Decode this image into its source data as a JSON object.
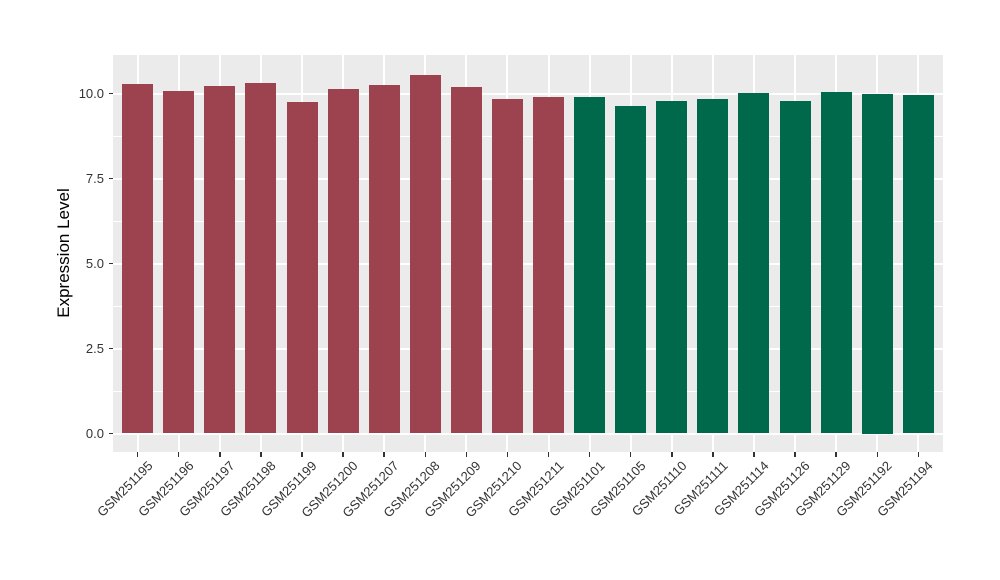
{
  "chart_data": {
    "type": "bar",
    "title": "",
    "xlabel": "",
    "ylabel": "Expression Level",
    "categories": [
      "GSM251195",
      "GSM251196",
      "GSM251197",
      "GSM251198",
      "GSM251199",
      "GSM251200",
      "GSM251207",
      "GSM251208",
      "GSM251209",
      "GSM251210",
      "GSM251211",
      "GSM251101",
      "GSM251105",
      "GSM251110",
      "GSM251111",
      "GSM251114",
      "GSM251126",
      "GSM251129",
      "GSM251192",
      "GSM251194"
    ],
    "values": [
      10.27,
      10.07,
      10.22,
      10.3,
      9.76,
      10.12,
      10.26,
      10.54,
      10.18,
      9.84,
      9.91,
      9.89,
      9.63,
      9.79,
      9.83,
      10.02,
      9.79,
      10.05,
      10.0,
      9.97
    ],
    "bar_groups": [
      "A",
      "A",
      "A",
      "A",
      "A",
      "A",
      "A",
      "A",
      "A",
      "A",
      "A",
      "B",
      "B",
      "B",
      "B",
      "B",
      "B",
      "B",
      "B",
      "B"
    ],
    "group_colors": {
      "A": "#9d424f",
      "B": "#00684b"
    },
    "yticks": {
      "values": [
        0,
        2.5,
        5,
        7.5,
        10
      ],
      "labels": [
        "0.0",
        "2.5",
        "5.0",
        "7.5",
        "10.0"
      ]
    },
    "minor_yticks": [
      1.25,
      3.75,
      6.25,
      8.75
    ],
    "ylim": [
      -0.53,
      11.06
    ],
    "grid": true,
    "legend": false,
    "panel_background": "#ebebeb",
    "gridline_color": "#ffffff"
  }
}
